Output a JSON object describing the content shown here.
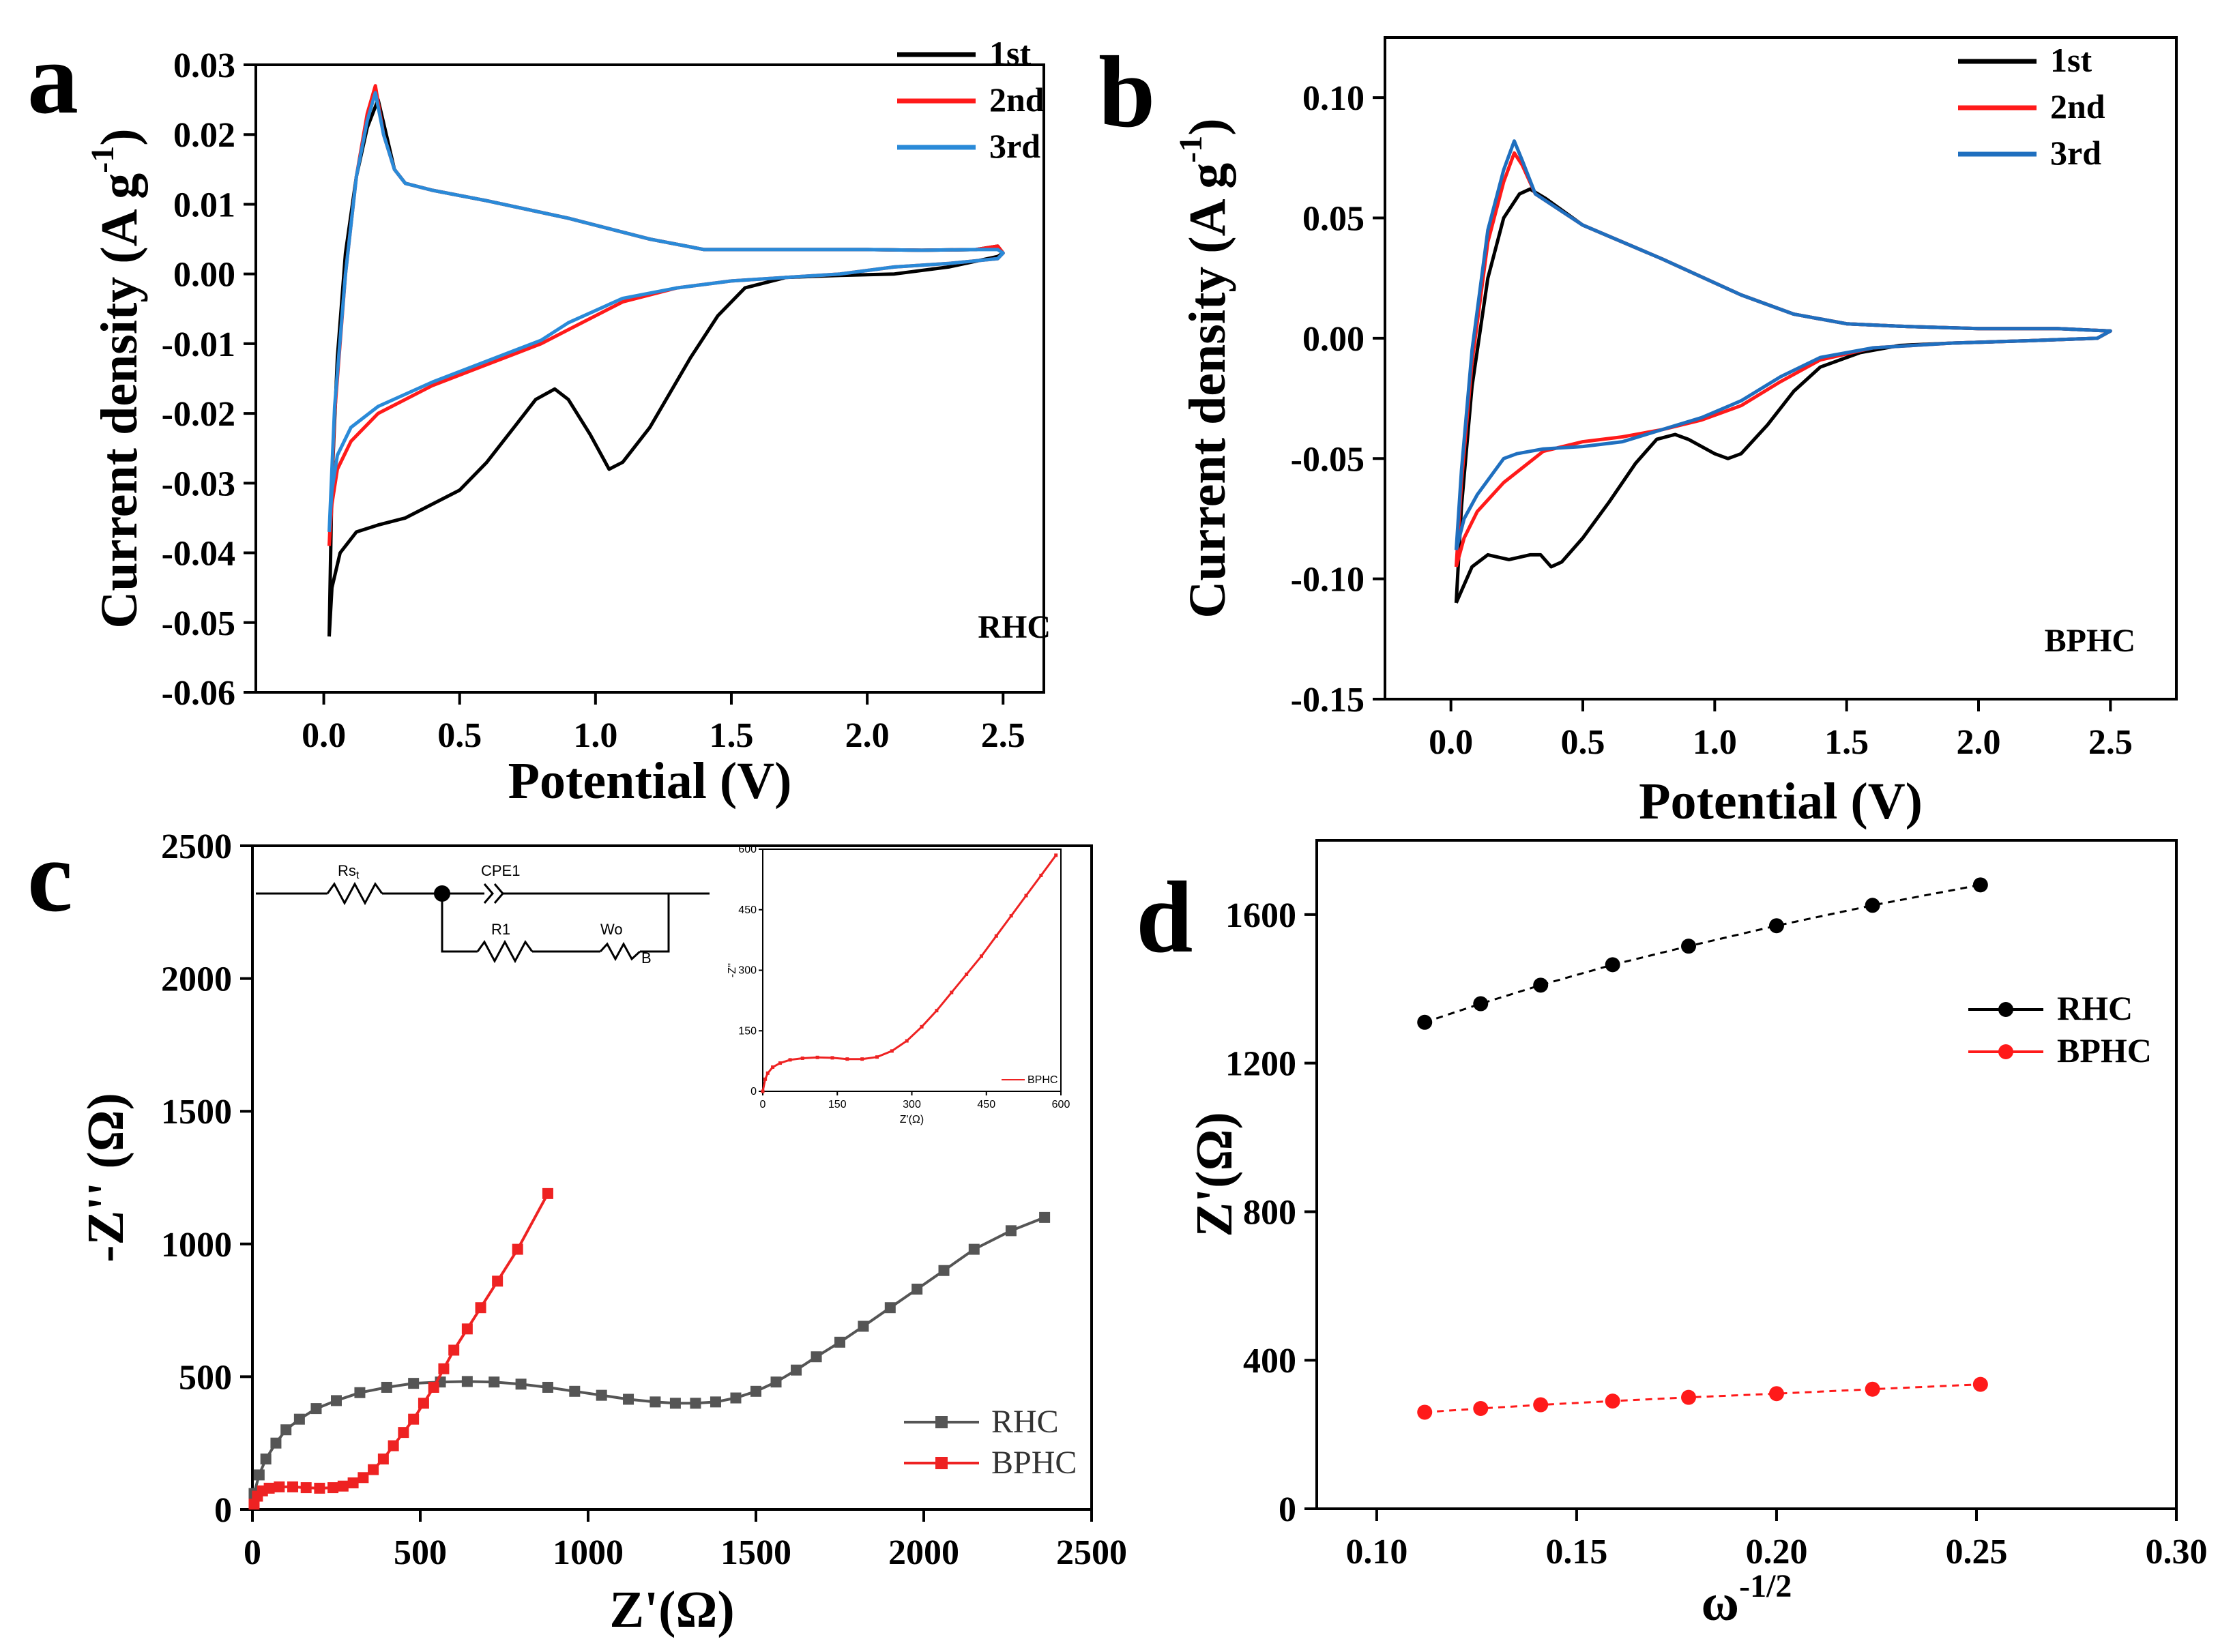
{
  "chart_data": [
    {
      "id": "a",
      "panel_letter": "a",
      "type": "line",
      "xlabel": "Potential (V)",
      "ylabel": "Current density (A g",
      "ylabel_sup": "-1",
      "ylabel_tail": ")",
      "xlim": [
        -0.25,
        2.65
      ],
      "ylim": [
        -0.06,
        0.03
      ],
      "xticks": [
        "0.0",
        "0.5",
        "1.0",
        "1.5",
        "2.0",
        "2.5"
      ],
      "xtick_values": [
        0,
        0.5,
        1.0,
        1.5,
        2.0,
        2.5
      ],
      "yticks": [
        "-0.06",
        "-0.05",
        "-0.04",
        "-0.03",
        "-0.02",
        "-0.01",
        "0.00",
        "0.01",
        "0.02",
        "0.03"
      ],
      "ytick_values": [
        -0.06,
        -0.05,
        -0.04,
        -0.03,
        -0.02,
        -0.01,
        0.0,
        0.01,
        0.02,
        0.03
      ],
      "tag": "RHC",
      "series": [
        {
          "name": "1st",
          "color": "#000000",
          "x": [
            0.02,
            0.03,
            0.05,
            0.08,
            0.12,
            0.16,
            0.2,
            0.23,
            0.26,
            0.3,
            0.4,
            0.6,
            0.9,
            1.2,
            1.4,
            1.6,
            1.8,
            2.0,
            2.2,
            2.4,
            2.48,
            2.5,
            2.48,
            2.3,
            2.1,
            1.9,
            1.7,
            1.55,
            1.45,
            1.35,
            1.2,
            1.1,
            1.05,
            0.98,
            0.9,
            0.85,
            0.78,
            0.7,
            0.6,
            0.5,
            0.4,
            0.3,
            0.2,
            0.12,
            0.06,
            0.03,
            0.02
          ],
          "y": [
            -0.052,
            -0.03,
            -0.012,
            0.003,
            0.014,
            0.021,
            0.025,
            0.02,
            0.015,
            0.013,
            0.012,
            0.0105,
            0.008,
            0.005,
            0.0035,
            0.0035,
            0.0035,
            0.0035,
            0.0034,
            0.0035,
            0.004,
            0.003,
            0.0025,
            0.001,
            0.0,
            -0.0002,
            -0.0005,
            -0.002,
            -0.006,
            -0.012,
            -0.022,
            -0.027,
            -0.028,
            -0.023,
            -0.018,
            -0.0165,
            -0.018,
            -0.022,
            -0.027,
            -0.031,
            -0.033,
            -0.035,
            -0.036,
            -0.037,
            -0.04,
            -0.045,
            -0.052
          ]
        },
        {
          "name": "2nd",
          "color": "#ff1a1a",
          "x": [
            0.02,
            0.04,
            0.08,
            0.12,
            0.16,
            0.19,
            0.22,
            0.26,
            0.3,
            0.4,
            0.6,
            0.9,
            1.2,
            1.4,
            1.6,
            1.8,
            2.0,
            2.2,
            2.4,
            2.48,
            2.5,
            2.48,
            2.3,
            2.1,
            1.9,
            1.7,
            1.5,
            1.3,
            1.1,
            0.9,
            0.8,
            0.6,
            0.4,
            0.2,
            0.1,
            0.05,
            0.03,
            0.02
          ],
          "y": [
            -0.039,
            -0.02,
            0.0,
            0.014,
            0.023,
            0.027,
            0.02,
            0.015,
            0.013,
            0.012,
            0.0105,
            0.008,
            0.005,
            0.0035,
            0.0035,
            0.0035,
            0.0035,
            0.0034,
            0.0035,
            0.004,
            0.003,
            0.0022,
            0.0015,
            0.001,
            0.0,
            -0.0005,
            -0.001,
            -0.002,
            -0.004,
            -0.008,
            -0.01,
            -0.013,
            -0.016,
            -0.02,
            -0.024,
            -0.028,
            -0.033,
            -0.039
          ]
        },
        {
          "name": "3rd",
          "color": "#2a8ad8",
          "x": [
            0.02,
            0.04,
            0.08,
            0.12,
            0.16,
            0.19,
            0.22,
            0.26,
            0.3,
            0.4,
            0.6,
            0.9,
            1.2,
            1.4,
            1.6,
            1.8,
            2.0,
            2.2,
            2.4,
            2.48,
            2.5,
            2.48,
            2.3,
            2.1,
            1.9,
            1.7,
            1.5,
            1.3,
            1.1,
            0.9,
            0.8,
            0.6,
            0.4,
            0.2,
            0.1,
            0.05,
            0.03,
            0.02
          ],
          "y": [
            -0.037,
            -0.019,
            0.0,
            0.014,
            0.022,
            0.026,
            0.02,
            0.015,
            0.013,
            0.012,
            0.0105,
            0.008,
            0.005,
            0.0035,
            0.0035,
            0.0035,
            0.0035,
            0.0034,
            0.0035,
            0.0035,
            0.003,
            0.0022,
            0.0015,
            0.001,
            0.0,
            -0.0005,
            -0.001,
            -0.002,
            -0.0035,
            -0.007,
            -0.0095,
            -0.0125,
            -0.0155,
            -0.019,
            -0.022,
            -0.026,
            -0.031,
            -0.037
          ]
        }
      ]
    },
    {
      "id": "b",
      "panel_letter": "b",
      "type": "line",
      "xlabel": "Potential (V)",
      "ylabel": "Current density (A g",
      "ylabel_sup": "-1",
      "ylabel_tail": ")",
      "xlim": [
        -0.25,
        2.75
      ],
      "ylim": [
        -0.15,
        0.125
      ],
      "xticks": [
        "0.0",
        "0.5",
        "1.0",
        "1.5",
        "2.0",
        "2.5"
      ],
      "xtick_values": [
        0,
        0.5,
        1.0,
        1.5,
        2.0,
        2.5
      ],
      "yticks": [
        "-0.15",
        "-0.10",
        "-0.05",
        "0.00",
        "0.05",
        "0.10"
      ],
      "ytick_values": [
        -0.15,
        -0.1,
        -0.05,
        0.0,
        0.05,
        0.1
      ],
      "tag": "BPHC",
      "series": [
        {
          "name": "1st",
          "color": "#000000",
          "x": [
            0.02,
            0.04,
            0.08,
            0.14,
            0.2,
            0.26,
            0.3,
            0.36,
            0.5,
            0.8,
            1.1,
            1.3,
            1.5,
            1.7,
            2.0,
            2.3,
            2.5,
            2.45,
            2.2,
            1.9,
            1.7,
            1.55,
            1.4,
            1.3,
            1.2,
            1.1,
            1.05,
            1.0,
            0.9,
            0.85,
            0.78,
            0.7,
            0.6,
            0.5,
            0.42,
            0.38,
            0.34,
            0.3,
            0.22,
            0.14,
            0.08,
            0.04,
            0.02
          ],
          "y": [
            -0.11,
            -0.07,
            -0.02,
            0.025,
            0.05,
            0.06,
            0.062,
            0.058,
            0.047,
            0.033,
            0.018,
            0.01,
            0.006,
            0.005,
            0.004,
            0.004,
            0.003,
            0.0,
            -0.001,
            -0.002,
            -0.003,
            -0.006,
            -0.012,
            -0.022,
            -0.036,
            -0.048,
            -0.05,
            -0.048,
            -0.042,
            -0.04,
            -0.042,
            -0.052,
            -0.068,
            -0.083,
            -0.093,
            -0.095,
            -0.09,
            -0.09,
            -0.092,
            -0.09,
            -0.095,
            -0.105,
            -0.11
          ]
        },
        {
          "name": "2nd",
          "color": "#ff1a1a",
          "x": [
            0.02,
            0.04,
            0.08,
            0.14,
            0.2,
            0.24,
            0.27,
            0.32,
            0.5,
            0.8,
            1.1,
            1.3,
            1.5,
            1.7,
            2.0,
            2.3,
            2.5,
            2.45,
            2.2,
            1.9,
            1.6,
            1.4,
            1.25,
            1.1,
            0.95,
            0.8,
            0.65,
            0.5,
            0.35,
            0.2,
            0.1,
            0.05,
            0.02
          ],
          "y": [
            -0.095,
            -0.06,
            -0.01,
            0.04,
            0.065,
            0.077,
            0.072,
            0.06,
            0.047,
            0.033,
            0.018,
            0.01,
            0.006,
            0.005,
            0.004,
            0.004,
            0.003,
            0.0,
            -0.001,
            -0.002,
            -0.004,
            -0.009,
            -0.018,
            -0.028,
            -0.034,
            -0.038,
            -0.041,
            -0.043,
            -0.047,
            -0.06,
            -0.072,
            -0.083,
            -0.095
          ]
        },
        {
          "name": "3rd",
          "color": "#1f6fbf",
          "x": [
            0.02,
            0.04,
            0.08,
            0.14,
            0.2,
            0.24,
            0.27,
            0.32,
            0.5,
            0.8,
            1.1,
            1.3,
            1.5,
            1.7,
            2.0,
            2.3,
            2.5,
            2.45,
            2.2,
            1.9,
            1.6,
            1.4,
            1.25,
            1.1,
            0.95,
            0.8,
            0.65,
            0.5,
            0.35,
            0.25,
            0.2,
            0.1,
            0.05,
            0.02
          ],
          "y": [
            -0.088,
            -0.055,
            -0.005,
            0.045,
            0.07,
            0.082,
            0.074,
            0.06,
            0.047,
            0.033,
            0.018,
            0.01,
            0.006,
            0.005,
            0.004,
            0.004,
            0.003,
            0.0,
            -0.001,
            -0.002,
            -0.004,
            -0.008,
            -0.016,
            -0.026,
            -0.033,
            -0.038,
            -0.043,
            -0.045,
            -0.046,
            -0.048,
            -0.05,
            -0.065,
            -0.075,
            -0.088
          ]
        }
      ]
    },
    {
      "id": "c",
      "panel_letter": "c",
      "type": "line",
      "xlabel": "Z'(Ω)",
      "ylabel": "-Z'' (Ω)",
      "xlim": [
        0,
        2500
      ],
      "ylim": [
        0,
        2500
      ],
      "xticks": [
        "0",
        "500",
        "1000",
        "1500",
        "2000",
        "2500"
      ],
      "xtick_values": [
        0,
        500,
        1000,
        1500,
        2000,
        2500
      ],
      "yticks": [
        "0",
        "500",
        "1000",
        "1500",
        "2000",
        "2500"
      ],
      "ytick_values": [
        0,
        500,
        1000,
        1500,
        2000,
        2500
      ],
      "series": [
        {
          "name": "RHC",
          "color": "#555555",
          "marker": "square",
          "x": [
            5,
            20,
            40,
            70,
            100,
            140,
            190,
            250,
            320,
            400,
            480,
            560,
            640,
            720,
            800,
            880,
            960,
            1040,
            1120,
            1200,
            1260,
            1320,
            1380,
            1440,
            1500,
            1560,
            1620,
            1680,
            1750,
            1820,
            1900,
            1980,
            2060,
            2150,
            2260,
            2360
          ],
          "y": [
            60,
            130,
            190,
            250,
            300,
            340,
            380,
            410,
            440,
            460,
            475,
            480,
            482,
            480,
            472,
            460,
            445,
            430,
            415,
            405,
            400,
            400,
            405,
            420,
            445,
            480,
            525,
            575,
            630,
            690,
            760,
            830,
            900,
            980,
            1050,
            1100
          ]
        },
        {
          "name": "BPHC",
          "color": "#ee2222",
          "marker": "square",
          "x": [
            5,
            15,
            30,
            50,
            80,
            120,
            160,
            200,
            240,
            270,
            300,
            330,
            360,
            390,
            420,
            450,
            480,
            510,
            540,
            570,
            600,
            640,
            680,
            730,
            790,
            880
          ],
          "y": [
            20,
            50,
            70,
            80,
            85,
            85,
            82,
            80,
            82,
            88,
            100,
            120,
            150,
            190,
            240,
            290,
            340,
            400,
            460,
            530,
            600,
            680,
            760,
            860,
            980,
            1190
          ]
        }
      ],
      "inset": {
        "xlabel": "Z'(Ω)",
        "ylabel": "-Z''",
        "xticks": [
          "0",
          "150",
          "300",
          "450",
          "600"
        ],
        "xtick_values": [
          0,
          150,
          300,
          450,
          600
        ],
        "yticks": [
          "0",
          "150",
          "300",
          "450",
          "600"
        ],
        "ytick_values": [
          0,
          150,
          300,
          450,
          600
        ],
        "xlim": [
          0,
          600
        ],
        "ylim": [
          0,
          600
        ],
        "legend": "BPHC",
        "series_x": [
          0,
          5,
          10,
          20,
          35,
          55,
          80,
          110,
          140,
          170,
          200,
          230,
          260,
          290,
          320,
          350,
          380,
          410,
          440,
          470,
          500,
          530,
          560,
          590
        ],
        "series_y": [
          0,
          30,
          45,
          60,
          70,
          78,
          82,
          84,
          83,
          80,
          80,
          85,
          100,
          125,
          160,
          200,
          245,
          290,
          335,
          385,
          435,
          485,
          535,
          585
        ]
      },
      "circuit": {
        "labels": [
          "Rs",
          "CPE1",
          "R1",
          "Wo"
        ],
        "sub_rs": "t",
        "sub_wo": "B"
      }
    },
    {
      "id": "d",
      "panel_letter": "d",
      "type": "line",
      "xlabel": "ω",
      "xlabel_sup": "-1/2",
      "ylabel": "Z'(Ω)",
      "xlim": [
        0.085,
        0.3
      ],
      "ylim": [
        0,
        1800
      ],
      "xticks": [
        "0.10",
        "0.15",
        "0.20",
        "0.25",
        "0.30"
      ],
      "xtick_values": [
        0.1,
        0.15,
        0.2,
        0.25,
        0.3
      ],
      "yticks": [
        "0",
        "400",
        "800",
        "1200",
        "1600"
      ],
      "ytick_values": [
        0,
        400,
        800,
        1200,
        1600
      ],
      "series": [
        {
          "name": "RHC",
          "color": "#000000",
          "marker": "circle",
          "x": [
            0.112,
            0.126,
            0.141,
            0.159,
            0.178,
            0.2,
            0.224,
            0.251
          ],
          "y": [
            1310,
            1360,
            1410,
            1465,
            1515,
            1570,
            1625,
            1680
          ]
        },
        {
          "name": "BPHC",
          "color": "#ff1a1a",
          "marker": "circle",
          "x": [
            0.112,
            0.126,
            0.141,
            0.159,
            0.178,
            0.2,
            0.224,
            0.251
          ],
          "y": [
            260,
            270,
            280,
            290,
            300,
            310,
            322,
            335
          ]
        }
      ]
    }
  ]
}
